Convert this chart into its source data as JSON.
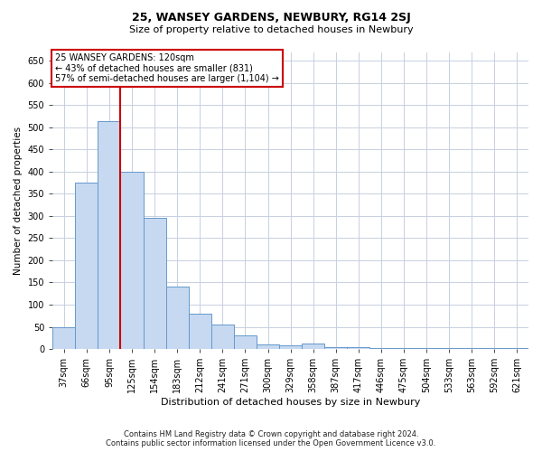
{
  "title": "25, WANSEY GARDENS, NEWBURY, RG14 2SJ",
  "subtitle": "Size of property relative to detached houses in Newbury",
  "xlabel": "Distribution of detached houses by size in Newbury",
  "ylabel": "Number of detached properties",
  "categories": [
    "37sqm",
    "66sqm",
    "95sqm",
    "125sqm",
    "154sqm",
    "183sqm",
    "212sqm",
    "241sqm",
    "271sqm",
    "300sqm",
    "329sqm",
    "358sqm",
    "387sqm",
    "417sqm",
    "446sqm",
    "475sqm",
    "504sqm",
    "533sqm",
    "563sqm",
    "592sqm",
    "621sqm"
  ],
  "values": [
    50,
    375,
    515,
    400,
    295,
    140,
    80,
    55,
    30,
    10,
    8,
    12,
    5,
    5,
    3,
    3,
    3,
    2,
    2,
    2,
    2
  ],
  "bar_color": "#c6d9f1",
  "bar_edge_color": "#6699cc",
  "vline_x": 2.5,
  "vline_color": "#cc0000",
  "annotation_text": "25 WANSEY GARDENS: 120sqm\n← 43% of detached houses are smaller (831)\n57% of semi-detached houses are larger (1,104) →",
  "annotation_box_color": "#ffffff",
  "annotation_box_edge_color": "#cc0000",
  "ylim": [
    0,
    670
  ],
  "yticks": [
    0,
    50,
    100,
    150,
    200,
    250,
    300,
    350,
    400,
    450,
    500,
    550,
    600,
    650
  ],
  "footer_line1": "Contains HM Land Registry data © Crown copyright and database right 2024.",
  "footer_line2": "Contains public sector information licensed under the Open Government Licence v3.0.",
  "background_color": "#ffffff",
  "grid_color": "#c8d0e0",
  "title_fontsize": 9,
  "subtitle_fontsize": 8,
  "ylabel_fontsize": 7.5,
  "xlabel_fontsize": 8,
  "tick_fontsize": 7,
  "annotation_fontsize": 7,
  "footer_fontsize": 6
}
